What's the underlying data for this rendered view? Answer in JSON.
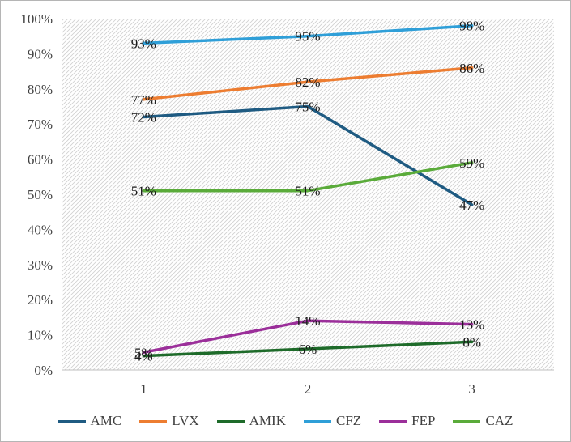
{
  "chart_data": {
    "type": "line",
    "title": "",
    "xlabel": "",
    "ylabel": "",
    "categories": [
      "1",
      "2",
      "3"
    ],
    "ylim": [
      0,
      100
    ],
    "y_ticks": [
      "0%",
      "10%",
      "20%",
      "30%",
      "40%",
      "50%",
      "60%",
      "70%",
      "80%",
      "90%",
      "100%"
    ],
    "grid": false,
    "legend_position": "bottom",
    "series": [
      {
        "name": "AMC",
        "color": "#1f5b82",
        "values": [
          72,
          75,
          47
        ],
        "labels": [
          "72%",
          "75%",
          "47%"
        ]
      },
      {
        "name": "LVX",
        "color": "#ed7d31",
        "values": [
          77,
          82,
          86
        ],
        "labels": [
          "77%",
          "82%",
          "86%"
        ]
      },
      {
        "name": "AMIK",
        "color": "#1e6b2a",
        "values": [
          4,
          6,
          8
        ],
        "labels": [
          "4%",
          "6%",
          "8%"
        ]
      },
      {
        "name": "CFZ",
        "color": "#2f9fd8",
        "values": [
          93,
          95,
          98
        ],
        "labels": [
          "93%",
          "95%",
          "98%"
        ]
      },
      {
        "name": "FEP",
        "color": "#9b2f9a",
        "values": [
          5,
          14,
          13
        ],
        "labels": [
          "5%",
          "14%",
          "13%"
        ]
      },
      {
        "name": "CAZ",
        "color": "#5aab3a",
        "values": [
          51,
          51,
          59
        ],
        "labels": [
          "51%",
          "51%",
          "59%"
        ]
      }
    ]
  }
}
